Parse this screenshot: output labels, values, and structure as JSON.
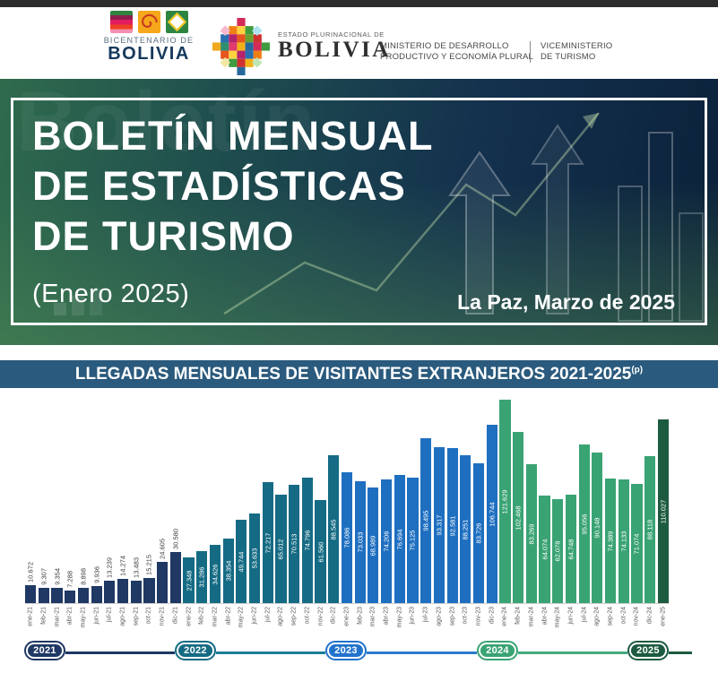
{
  "header": {
    "bicentenario": {
      "line1": "BICENTENARIO DE",
      "line2": "BOLIVIA"
    },
    "estado": {
      "small": "ESTADO PLURINACIONAL DE",
      "big": "BOLIVIA"
    },
    "ministerio": {
      "line1": "MINISTERIO DE DESARROLLO",
      "line2": "PRODUCTIVO Y ECONOMÍA PLURAL"
    },
    "viceministerio": {
      "line1": "VICEMINISTERIO",
      "line2": "DE TURISMO"
    }
  },
  "banner": {
    "watermark": "Boletín",
    "title_line1": "BOLETÍN MENSUAL",
    "title_line2": "DE ESTADÍSTICAS",
    "title_line3": "DE TURISMO",
    "subtitle": "(Enero 2025)",
    "date": "La Paz, Marzo de 2025"
  },
  "section": {
    "title": "LLEGADAS MENSUALES DE VISITANTES EXTRANJEROS 2021-2025",
    "title_sup": "(p)"
  },
  "chart_data": {
    "type": "bar",
    "title": "LLEGADAS MENSUALES DE VISITANTES EXTRANJEROS 2021-2025(p)",
    "ylim": [
      0,
      125000
    ],
    "grid": false,
    "legend_position": "none",
    "categories": [
      "ene-21",
      "feb-21",
      "mar-21",
      "abr-21",
      "may-21",
      "jun-21",
      "jul-21",
      "ago-21",
      "sep-21",
      "oct-21",
      "nov-21",
      "dic-21",
      "ene-22",
      "feb-22",
      "mar-22",
      "abr-22",
      "may-22",
      "jun-22",
      "jul-22",
      "ago-22",
      "sep-22",
      "oct-22",
      "nov-22",
      "dic-22",
      "ene-23",
      "feb-23",
      "mar-23",
      "abr-23",
      "may-23",
      "jun-23",
      "jul-23",
      "ago-23",
      "sep-23",
      "oct-23",
      "nov-23",
      "dic-23",
      "ene-24",
      "feb-24",
      "mar-24",
      "abr-24",
      "may-24",
      "jun-24",
      "jul-24",
      "ago-24",
      "sep-24",
      "oct-24",
      "nov-24",
      "dic-24",
      "ene-25"
    ],
    "values": [
      10672,
      9307,
      9354,
      7288,
      8898,
      9936,
      13239,
      14274,
      13483,
      15215,
      24605,
      30580,
      27348,
      31286,
      34626,
      38354,
      49744,
      53633,
      72217,
      65012,
      70513,
      74796,
      61560,
      88545,
      78086,
      73033,
      68989,
      74206,
      76694,
      75125,
      98495,
      93317,
      92581,
      88251,
      83726,
      106744,
      121629,
      102468,
      83269,
      64074,
      62078,
      64748,
      95056,
      90148,
      74389,
      74133,
      71074,
      88118,
      110027
    ],
    "value_labels": [
      "10.672",
      "9.307",
      "9.354",
      "7.288",
      "8.898",
      "9.936",
      "13.239",
      "14.274",
      "13.483",
      "15.215",
      "24.605",
      "30.580",
      "27.348",
      "31.286",
      "34.626",
      "38.354",
      "49.744",
      "53.633",
      "72.217",
      "65.012",
      "70.513",
      "74.796",
      "61.560",
      "88.545",
      "78.086",
      "73.033",
      "68.989",
      "74.206",
      "76.694",
      "75.125",
      "98.495",
      "93.317",
      "92.581",
      "88.251",
      "83.726",
      "106.744",
      "121.629",
      "102.468",
      "83.269",
      "64.074",
      "62.078",
      "64.748",
      "95.056",
      "90.148",
      "74.389",
      "74.133",
      "71.074",
      "88.118",
      "110.027"
    ],
    "series_colors": {
      "2021": "#1f3864",
      "2022": "#156b84",
      "2023": "#1e6fc0",
      "2024": "#3aa374",
      "2025": "#1d5b40"
    }
  },
  "timeline": {
    "pills": [
      {
        "label": "2021",
        "color": "#1f3864"
      },
      {
        "label": "2022",
        "color": "#156b84"
      },
      {
        "label": "2023",
        "color": "#2273cc"
      },
      {
        "label": "2024",
        "color": "#3aa374"
      },
      {
        "label": "2025",
        "color": "#1d5b40"
      }
    ],
    "segment_colors": [
      "#1f3864",
      "#1b7f98",
      "#2e7ad0",
      "#44a97c",
      "#1d5b40"
    ]
  }
}
